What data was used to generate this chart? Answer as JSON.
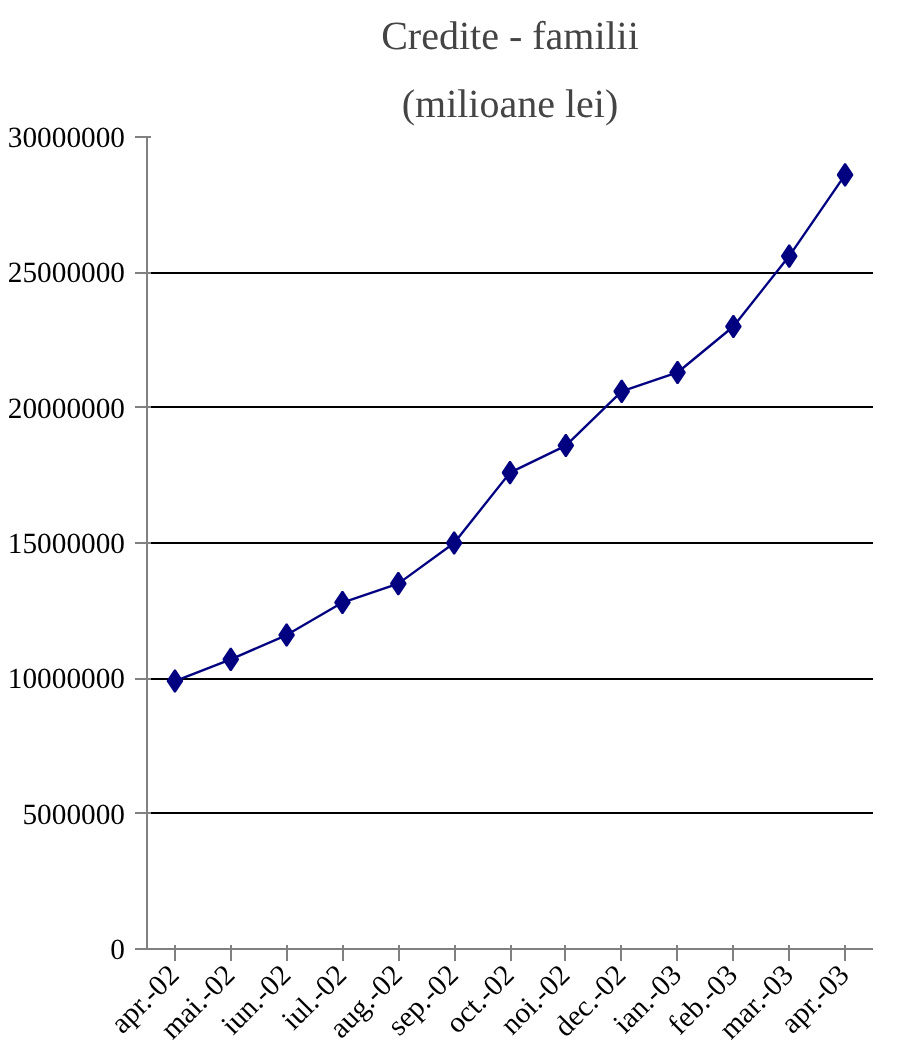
{
  "chart_data": {
    "type": "line",
    "title": "Credite - familii",
    "subtitle": "(milioane lei)",
    "categories": [
      "apr.-02",
      "mai.-02",
      "iun.-02",
      "iul.-02",
      "aug.-02",
      "sep.-02",
      "oct.-02",
      "noi.-02",
      "dec.-02",
      "ian.-03",
      "feb.-03",
      "mar.-03",
      "apr.-03"
    ],
    "series": [
      {
        "color": "#000080",
        "values": [
          9900000,
          10700000,
          11600000,
          12800000,
          13500000,
          15000000,
          17600000,
          18600000,
          20600000,
          21300000,
          23000000,
          25600000,
          28600000
        ]
      }
    ],
    "ylim": [
      0,
      30000000
    ],
    "yticks": [
      0,
      5000000,
      10000000,
      15000000,
      20000000,
      25000000,
      30000000
    ],
    "grid": "y",
    "marker": "diamond",
    "line_style": "solid"
  }
}
